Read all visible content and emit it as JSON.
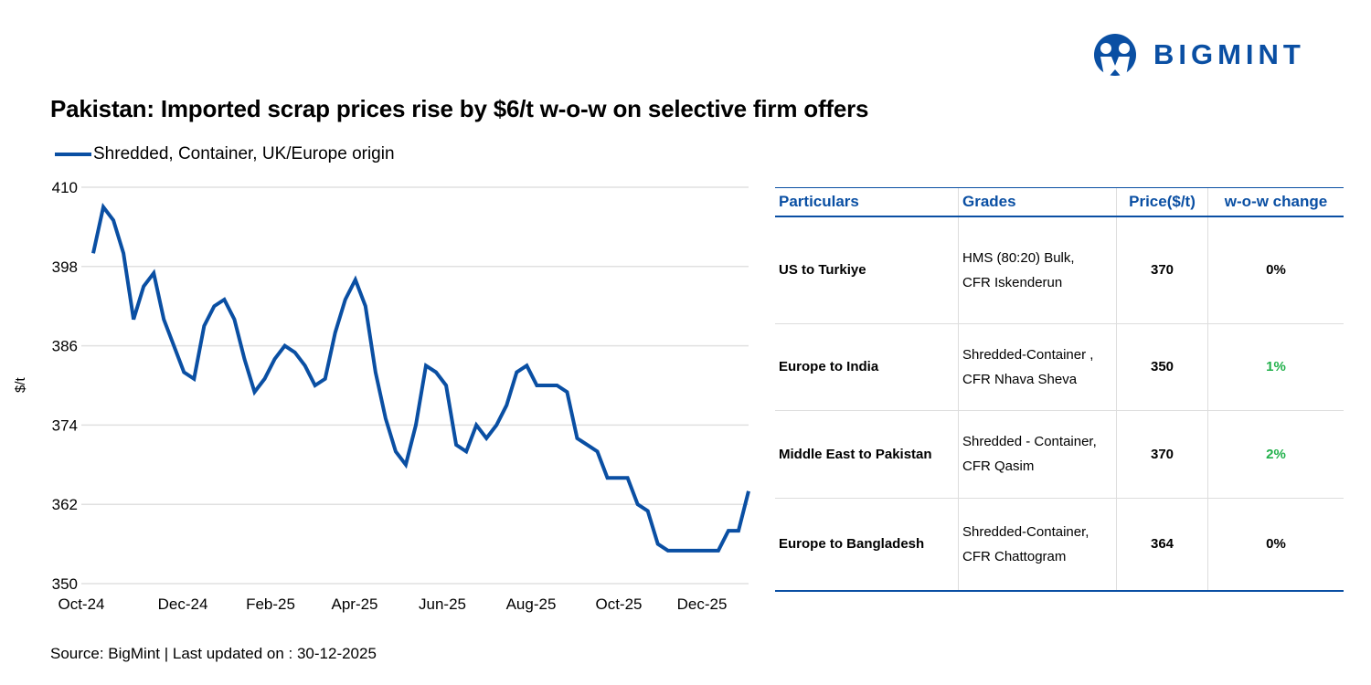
{
  "title": "Pakistan: Imported scrap prices rise by $6/t w-o-w on selective firm offers",
  "logo": {
    "text": "BIGMINT",
    "color": "#0a4fa3"
  },
  "source": "Source: BigMint | Last updated on : 30-12-2025",
  "chart_data": {
    "type": "line",
    "title": "",
    "xlabel": "",
    "ylabel": "$/t",
    "ylim": [
      350,
      410
    ],
    "yticks": [
      "410",
      "398",
      "386",
      "374",
      "362",
      "350"
    ],
    "xticks": [
      "Oct-24",
      "Dec-24",
      "Feb-25",
      "Apr-25",
      "Jun-25",
      "Aug-25",
      "Oct-25",
      "Dec-25"
    ],
    "grid": true,
    "legend": "top-left",
    "series": [
      {
        "name": "Shredded, Container, UK/Europe origin",
        "color": "#0a4fa3",
        "values": [
          400,
          407,
          405,
          400,
          390,
          395,
          397,
          390,
          386,
          382,
          381,
          389,
          392,
          393,
          390,
          384,
          379,
          381,
          384,
          386,
          385,
          383,
          380,
          381,
          388,
          393,
          396,
          392,
          382,
          375,
          370,
          368,
          374,
          383,
          382,
          380,
          371,
          370,
          374,
          372,
          374,
          377,
          382,
          383,
          380,
          380,
          380,
          379,
          372,
          371,
          370,
          366,
          366,
          366,
          362,
          361,
          356,
          355,
          355,
          355,
          355,
          355,
          355,
          358,
          358,
          364
        ]
      }
    ]
  },
  "table": {
    "headers": [
      "Particulars",
      "Grades",
      "Price($/t)",
      "w-o-w change"
    ],
    "rows": [
      {
        "particulars": "US to Turkiye",
        "grade1": "HMS (80:20) Bulk,",
        "grade2": "CFR Iskenderun",
        "price": "370",
        "change": "0%",
        "positive": false
      },
      {
        "particulars": "Europe to India",
        "grade1": "Shredded-Container ,",
        "grade2": "CFR Nhava Sheva",
        "price": "350",
        "change": "1%",
        "positive": true
      },
      {
        "particulars": "Middle East to Pakistan",
        "grade1": "Shredded - Container,",
        "grade2": "CFR Qasim",
        "price": "370",
        "change": "2%",
        "positive": true
      },
      {
        "particulars": "Europe to Bangladesh",
        "grade1": "Shredded-Container,",
        "grade2": "CFR Chattogram",
        "price": "364",
        "change": "0%",
        "positive": false
      }
    ],
    "positive_color": "#22b14c"
  }
}
